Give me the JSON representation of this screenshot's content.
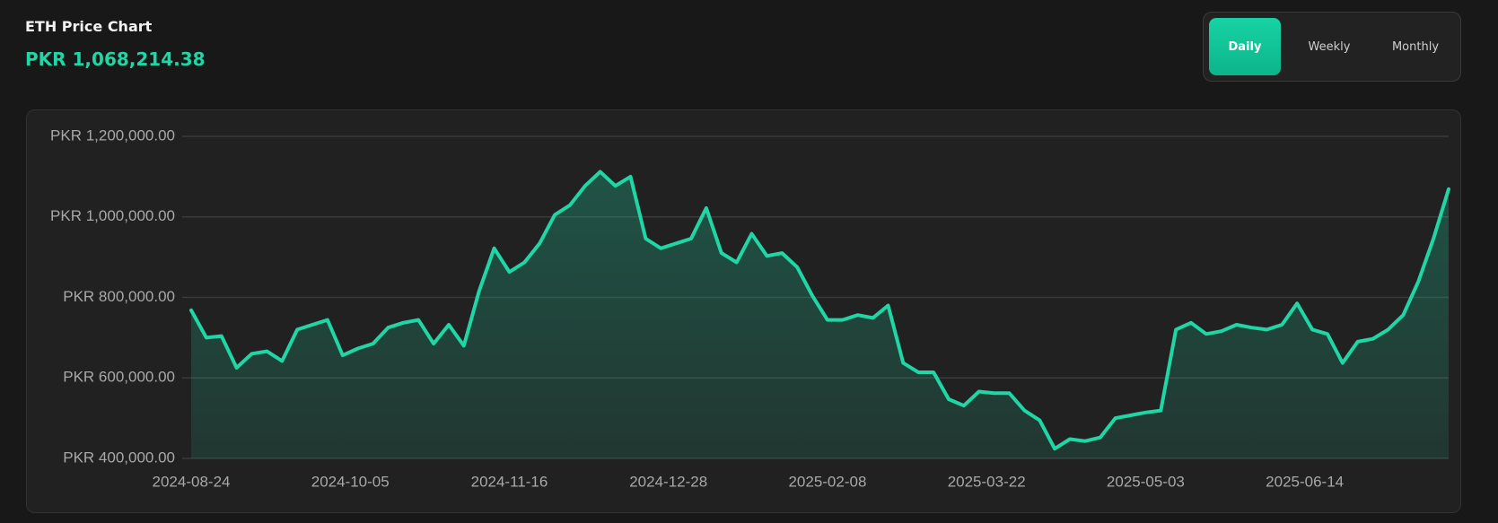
{
  "header": {
    "title": "ETH Price Chart",
    "price": "PKR 1,068,214.38"
  },
  "buttons": [
    "Daily",
    "Weekly",
    "Monthly"
  ],
  "chart_data": {
    "type": "area",
    "x": [
      "2024-08-24",
      "2024-08-28",
      "2024-09-01",
      "2024-09-05",
      "2024-09-09",
      "2024-09-13",
      "2024-09-17",
      "2024-09-21",
      "2024-09-25",
      "2024-09-29",
      "2024-10-03",
      "2024-10-07",
      "2024-10-11",
      "2024-10-15",
      "2024-10-19",
      "2024-10-23",
      "2024-10-27",
      "2024-10-31",
      "2024-11-04",
      "2024-11-08",
      "2024-11-12",
      "2024-11-16",
      "2024-11-20",
      "2024-11-24",
      "2024-11-28",
      "2024-12-02",
      "2024-12-06",
      "2024-12-10",
      "2024-12-14",
      "2024-12-18",
      "2024-12-22",
      "2024-12-26",
      "2024-12-30",
      "2025-01-03",
      "2025-01-07",
      "2025-01-11",
      "2025-01-15",
      "2025-01-19",
      "2025-01-23",
      "2025-01-27",
      "2025-01-31",
      "2025-02-04",
      "2025-02-08",
      "2025-02-12",
      "2025-02-16",
      "2025-02-20",
      "2025-02-24",
      "2025-02-28",
      "2025-03-04",
      "2025-03-08",
      "2025-03-12",
      "2025-03-16",
      "2025-03-20",
      "2025-03-24",
      "2025-03-28",
      "2025-04-01",
      "2025-04-05",
      "2025-04-09",
      "2025-04-13",
      "2025-04-17",
      "2025-04-21",
      "2025-04-25",
      "2025-04-29",
      "2025-05-03",
      "2025-05-07",
      "2025-05-11",
      "2025-05-15",
      "2025-05-19",
      "2025-05-23",
      "2025-05-27",
      "2025-05-31",
      "2025-06-04",
      "2025-06-08",
      "2025-06-12",
      "2025-06-16",
      "2025-06-20",
      "2025-06-24",
      "2025-06-28",
      "2025-07-02",
      "2025-07-06",
      "2025-07-10",
      "2025-07-14",
      "2025-07-18",
      "2025-07-22"
    ],
    "values": [
      768000,
      700000,
      704000,
      625000,
      660000,
      666000,
      642000,
      720000,
      732000,
      744000,
      656000,
      673000,
      685000,
      725000,
      737000,
      744000,
      685000,
      732000,
      680000,
      815000,
      922000,
      863000,
      887000,
      934000,
      1005000,
      1029000,
      1077000,
      1112000,
      1077000,
      1100000,
      946000,
      922000,
      934000,
      946000,
      1022000,
      910000,
      887000,
      958000,
      903000,
      910000,
      875000,
      804000,
      744000,
      744000,
      756000,
      749000,
      780000,
      637000,
      614000,
      614000,
      547000,
      531000,
      566000,
      562000,
      562000,
      519000,
      495000,
      424000,
      448000,
      443000,
      452000,
      500000,
      507000,
      514000,
      519000,
      720000,
      737000,
      709000,
      716000,
      732000,
      725000,
      720000,
      732000,
      785000,
      720000,
      709000,
      637000,
      690000,
      697000,
      720000,
      756000,
      839000,
      946000,
      1069000
    ],
    "color": "#1fd6a4",
    "xlim": [
      "2024-08-24",
      "2025-07-22"
    ],
    "xticks": [
      "2024-08-24",
      "2024-10-05",
      "2024-11-16",
      "2024-12-28",
      "2025-02-08",
      "2025-03-22",
      "2025-05-03",
      "2025-06-14"
    ],
    "ylim": [
      400000,
      1200000
    ],
    "yticks": [
      {
        "value": 400000,
        "label": "PKR 400,000.00"
      },
      {
        "value": 600000,
        "label": "PKR 600,000.00"
      },
      {
        "value": 800000,
        "label": "PKR 800,000.00"
      },
      {
        "value": 1000000,
        "label": "PKR 1,000,000.00"
      },
      {
        "value": 1200000,
        "label": "PKR 1,200,000.00"
      }
    ],
    "grid": true
  }
}
